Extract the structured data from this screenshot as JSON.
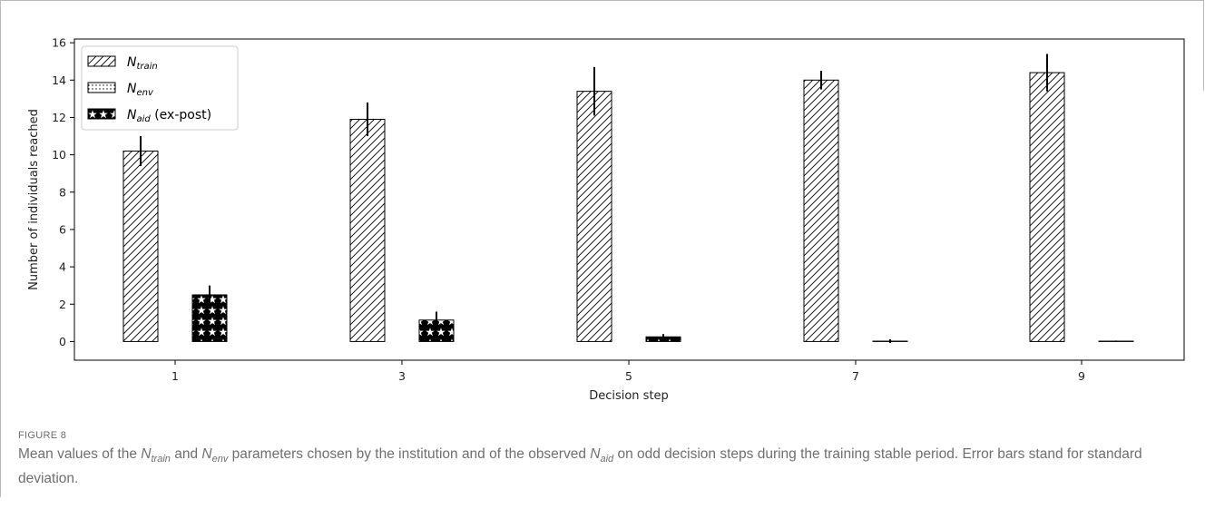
{
  "chart_data": {
    "type": "bar",
    "xlabel": "Decision step",
    "ylabel": "Number of individuals reached",
    "categories": [
      "1",
      "3",
      "5",
      "7",
      "9"
    ],
    "ylim": [
      -1,
      16.2
    ],
    "yticks": [
      0,
      2,
      4,
      6,
      8,
      10,
      12,
      14,
      16
    ],
    "grid": false,
    "legend_position": "top-left",
    "series": [
      {
        "name": "N",
        "name_sub": "train",
        "name_suffix": "",
        "pattern": "hatch",
        "values": [
          10.2,
          11.9,
          13.4,
          14.0,
          14.4
        ],
        "errors": [
          0.8,
          0.9,
          1.3,
          0.5,
          1.0
        ]
      },
      {
        "name": "N",
        "name_sub": "env",
        "name_suffix": "",
        "pattern": "dots",
        "values": [
          0,
          0,
          0,
          0,
          0
        ],
        "errors": [
          0,
          0,
          0,
          0,
          0
        ]
      },
      {
        "name": "N",
        "name_sub": "aid",
        "name_suffix": " (ex-post)",
        "pattern": "stars",
        "values": [
          2.5,
          1.15,
          0.25,
          0.02,
          0.02
        ],
        "errors": [
          0.5,
          0.45,
          0.15,
          0.1,
          0.03
        ]
      }
    ],
    "colors": {
      "edge": "#000000",
      "fill": "#ffffff",
      "hatch": "#000000"
    }
  },
  "figure": {
    "label": "FIGURE 8",
    "caption_parts": {
      "p1": "Mean values of the ",
      "n1": "N",
      "s1": "train",
      "p2": " and ",
      "n2": "N",
      "s2": "env",
      "p3": " parameters chosen by the institution and of the observed ",
      "n3": "N",
      "s3": "aid",
      "p4": " on odd decision steps during the training stable period. Error bars stand for standard deviation."
    }
  }
}
